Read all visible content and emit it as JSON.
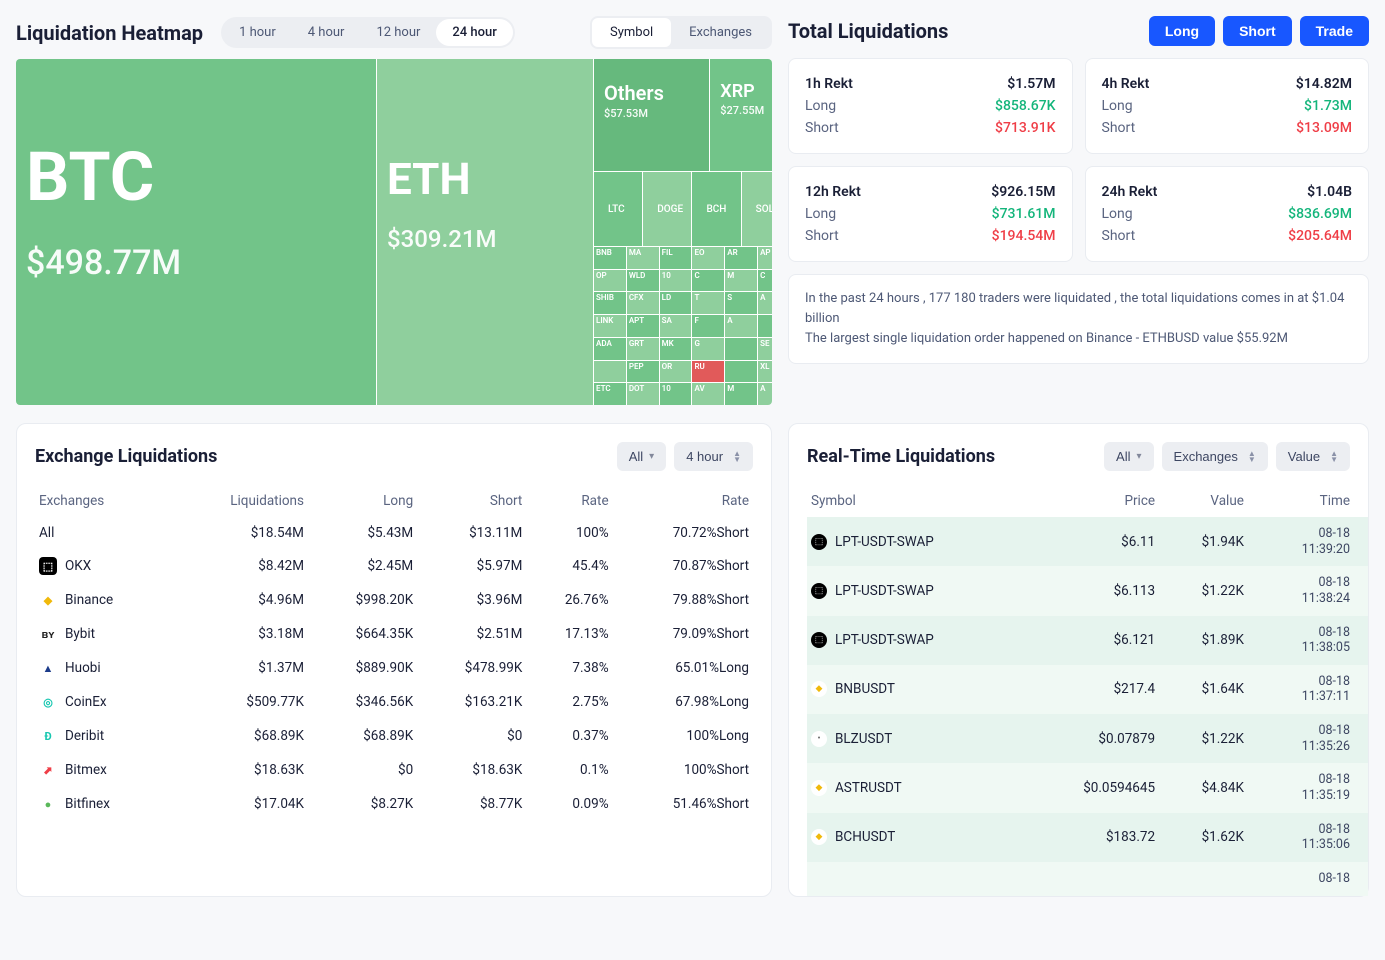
{
  "colors": {
    "page_bg": "#f7f8fa",
    "card_bg": "#ffffff",
    "border": "#e9ecf1",
    "text_primary": "#1a1f36",
    "text_muted": "#5a6480",
    "blue": "#1857ff",
    "green": "#14b57b",
    "red": "#ef3e47",
    "treemap_green": "#72c489",
    "treemap_green_light": "#8fcf9d",
    "treemap_red": "#e15a5a",
    "rt_row_a": "#e6f4ee",
    "rt_row_b": "#f0f9f4",
    "pill_bg": "#eceef2"
  },
  "heatmap": {
    "title": "Liquidation Heatmap",
    "time_tabs": [
      "1 hour",
      "4 hour",
      "12 hour",
      "24 hour"
    ],
    "time_active": "24 hour",
    "view_tabs": [
      "Symbol",
      "Exchanges"
    ],
    "view_active": "Symbol",
    "btc": {
      "label": "BTC",
      "value": "$498.77M",
      "color": "#72c489"
    },
    "eth": {
      "label": "ETH",
      "value": "$309.21M",
      "color": "#8fcf9d"
    },
    "others": {
      "label": "Others",
      "value": "$57.53M",
      "color": "#66b97d"
    },
    "xrp": {
      "label": "XRP",
      "value": "$27.55M",
      "color": "#72c489"
    },
    "mid_row": [
      {
        "label": "LTC",
        "color": "#72c489"
      },
      {
        "label": "DOGE",
        "color": "#8fcf9d"
      },
      {
        "label": "BCH",
        "color": "#72c489"
      },
      {
        "label": "SOL",
        "color": "#8fcf9d"
      }
    ],
    "small_rows": [
      [
        {
          "l": "BNB",
          "c": "#72c489"
        },
        {
          "l": "MA",
          "c": "#8fcf9d"
        },
        {
          "l": "FIL",
          "c": "#72c489"
        },
        {
          "l": "EO",
          "c": "#8fcf9d"
        },
        {
          "l": "AR",
          "c": "#72c489"
        },
        {
          "l": "AP",
          "c": "#8fcf9d"
        }
      ],
      [
        {
          "l": "OP",
          "c": "#8fcf9d"
        },
        {
          "l": "WLD",
          "c": "#72c489"
        },
        {
          "l": "10",
          "c": "#8fcf9d"
        },
        {
          "l": "C",
          "c": "#72c489"
        },
        {
          "l": "M",
          "c": "#8fcf9d"
        },
        {
          "l": "C",
          "c": "#72c489"
        }
      ],
      [
        {
          "l": "SHIB",
          "c": "#72c489"
        },
        {
          "l": "CFX",
          "c": "#8fcf9d"
        },
        {
          "l": "LD",
          "c": "#72c489"
        },
        {
          "l": "T",
          "c": "#8fcf9d"
        },
        {
          "l": "S",
          "c": "#72c489"
        },
        {
          "l": "A",
          "c": "#8fcf9d"
        }
      ],
      [
        {
          "l": "LINK",
          "c": "#8fcf9d"
        },
        {
          "l": "APT",
          "c": "#72c489"
        },
        {
          "l": "SA",
          "c": "#8fcf9d"
        },
        {
          "l": "F",
          "c": "#72c489"
        },
        {
          "l": "A",
          "c": "#8fcf9d"
        },
        {
          "l": "",
          "c": "#72c489"
        }
      ],
      [
        {
          "l": "ADA",
          "c": "#72c489"
        },
        {
          "l": "GRT",
          "c": "#8fcf9d"
        },
        {
          "l": "MK",
          "c": "#72c489"
        },
        {
          "l": "G",
          "c": "#8fcf9d"
        },
        {
          "l": "",
          "c": "#72c489"
        },
        {
          "l": "SE",
          "c": "#8fcf9d"
        }
      ],
      [
        {
          "l": "",
          "c": "#8fcf9d"
        },
        {
          "l": "PEP",
          "c": "#72c489"
        },
        {
          "l": "OR",
          "c": "#8fcf9d"
        },
        {
          "l": "RU",
          "c": "#e15a5a"
        },
        {
          "l": "",
          "c": "#72c489"
        },
        {
          "l": "XL",
          "c": "#8fcf9d"
        }
      ],
      [
        {
          "l": "ETC",
          "c": "#72c489"
        },
        {
          "l": "DOT",
          "c": "#8fcf9d"
        },
        {
          "l": "10",
          "c": "#72c489"
        },
        {
          "l": "AV",
          "c": "#8fcf9d"
        },
        {
          "l": "M",
          "c": "#72c489"
        },
        {
          "l": "A",
          "c": "#8fcf9d"
        }
      ]
    ]
  },
  "totals": {
    "title": "Total Liquidations",
    "buttons": [
      "Long",
      "Short",
      "Trade"
    ],
    "cards": [
      {
        "title": "1h Rekt",
        "total": "$1.57M",
        "long": "$858.67K",
        "short": "$713.91K"
      },
      {
        "title": "4h Rekt",
        "total": "$14.82M",
        "long": "$1.73M",
        "short": "$13.09M"
      },
      {
        "title": "12h Rekt",
        "total": "$926.15M",
        "long": "$731.61M",
        "short": "$194.54M"
      },
      {
        "title": "24h Rekt",
        "total": "$1.04B",
        "long": "$836.69M",
        "short": "$205.64M"
      }
    ],
    "labels": {
      "long": "Long",
      "short": "Short"
    },
    "summary_line1": "In the past 24 hours , 177 180 traders were liquidated , the total liquidations comes in at $1.04 billion",
    "summary_line2": "The largest single liquidation order happened on Binance - ETHBUSD value $55.92M"
  },
  "exch": {
    "title": "Exchange Liquidations",
    "filter_all": "All",
    "filter_time": "4 hour",
    "headers": [
      "Exchanges",
      "Liquidations",
      "Long",
      "Short",
      "Rate",
      "Rate"
    ],
    "rows": [
      {
        "name": "All",
        "icon": null,
        "liq": "$18.54M",
        "long": "$5.43M",
        "short": "$13.11M",
        "rate": "100%",
        "rate2": "70.72%Short",
        "dir": "short"
      },
      {
        "name": "OKX",
        "icon": {
          "bg": "#000",
          "fg": "#fff",
          "txt": "⬚"
        },
        "liq": "$8.42M",
        "long": "$2.45M",
        "short": "$5.97M",
        "rate": "45.4%",
        "rate2": "70.87%Short",
        "dir": "short"
      },
      {
        "name": "Binance",
        "icon": {
          "bg": "#fff",
          "fg": "#f0b90b",
          "txt": "◆"
        },
        "liq": "$4.96M",
        "long": "$998.20K",
        "short": "$3.96M",
        "rate": "26.76%",
        "rate2": "79.88%Short",
        "dir": "short"
      },
      {
        "name": "Bybit",
        "icon": {
          "bg": "#fff",
          "fg": "#222",
          "txt": "ʙʏ"
        },
        "liq": "$3.18M",
        "long": "$664.35K",
        "short": "$2.51M",
        "rate": "17.13%",
        "rate2": "79.09%Short",
        "dir": "short"
      },
      {
        "name": "Huobi",
        "icon": {
          "bg": "#fff",
          "fg": "#1b3b8a",
          "txt": "▲"
        },
        "liq": "$1.37M",
        "long": "$889.90K",
        "short": "$478.99K",
        "rate": "7.38%",
        "rate2": "65.01%Long",
        "dir": "long"
      },
      {
        "name": "CoinEx",
        "icon": {
          "bg": "#fff",
          "fg": "#17c7b0",
          "txt": "◎"
        },
        "liq": "$509.77K",
        "long": "$346.56K",
        "short": "$163.21K",
        "rate": "2.75%",
        "rate2": "67.98%Long",
        "dir": "long"
      },
      {
        "name": "Deribit",
        "icon": {
          "bg": "#fff",
          "fg": "#17c7b0",
          "txt": "Đ"
        },
        "liq": "$68.89K",
        "long": "$68.89K",
        "short": "$0",
        "rate": "0.37%",
        "rate2": "100%Long",
        "dir": "long"
      },
      {
        "name": "Bitmex",
        "icon": {
          "bg": "#fff",
          "fg": "#ef3e47",
          "txt": "⬈"
        },
        "liq": "$18.63K",
        "long": "$0",
        "short": "$18.63K",
        "rate": "0.1%",
        "rate2": "100%Short",
        "dir": "short"
      },
      {
        "name": "Bitfinex",
        "icon": {
          "bg": "#fff",
          "fg": "#5bb85b",
          "txt": "●"
        },
        "liq": "$17.04K",
        "long": "$8.27K",
        "short": "$8.77K",
        "rate": "0.09%",
        "rate2": "51.46%Short",
        "dir": "short"
      }
    ]
  },
  "rt": {
    "title": "Real-Time Liquidations",
    "filters": {
      "all": "All",
      "exchanges": "Exchanges",
      "value": "Value"
    },
    "headers": [
      "Symbol",
      "Price",
      "Value",
      "Time"
    ],
    "rows": [
      {
        "sym": "LPT-USDT-SWAP",
        "icon": {
          "bg": "#000",
          "fg": "#fff",
          "txt": "⬚"
        },
        "price": "$6.11",
        "value": "$1.94K",
        "t1": "08-18",
        "t2": "11:39:20",
        "shade": "a"
      },
      {
        "sym": "LPT-USDT-SWAP",
        "icon": {
          "bg": "#000",
          "fg": "#fff",
          "txt": "⬚"
        },
        "price": "$6.113",
        "value": "$1.22K",
        "t1": "08-18",
        "t2": "11:38:24",
        "shade": "b"
      },
      {
        "sym": "LPT-USDT-SWAP",
        "icon": {
          "bg": "#000",
          "fg": "#fff",
          "txt": "⬚"
        },
        "price": "$6.121",
        "value": "$1.89K",
        "t1": "08-18",
        "t2": "11:38:05",
        "shade": "a"
      },
      {
        "sym": "BNBUSDT",
        "icon": {
          "bg": "#fff",
          "fg": "#f0b90b",
          "txt": "◆"
        },
        "price": "$217.4",
        "value": "$1.64K",
        "t1": "08-18",
        "t2": "11:37:11",
        "shade": "b"
      },
      {
        "sym": "BLZUSDT",
        "icon": {
          "bg": "#fff",
          "fg": "#666",
          "txt": "•"
        },
        "price": "$0.07879",
        "value": "$1.22K",
        "t1": "08-18",
        "t2": "11:35:26",
        "shade": "a"
      },
      {
        "sym": "ASTRUSDT",
        "icon": {
          "bg": "#fff",
          "fg": "#f0b90b",
          "txt": "◆"
        },
        "price": "$0.0594645",
        "value": "$4.84K",
        "t1": "08-18",
        "t2": "11:35:19",
        "shade": "b"
      },
      {
        "sym": "BCHUSDT",
        "icon": {
          "bg": "#fff",
          "fg": "#f0b90b",
          "txt": "◆"
        },
        "price": "$183.72",
        "value": "$1.62K",
        "t1": "08-18",
        "t2": "11:35:06",
        "shade": "a"
      },
      {
        "sym": "",
        "icon": null,
        "price": "",
        "value": "",
        "t1": "08-18",
        "t2": "",
        "shade": "b"
      }
    ]
  }
}
